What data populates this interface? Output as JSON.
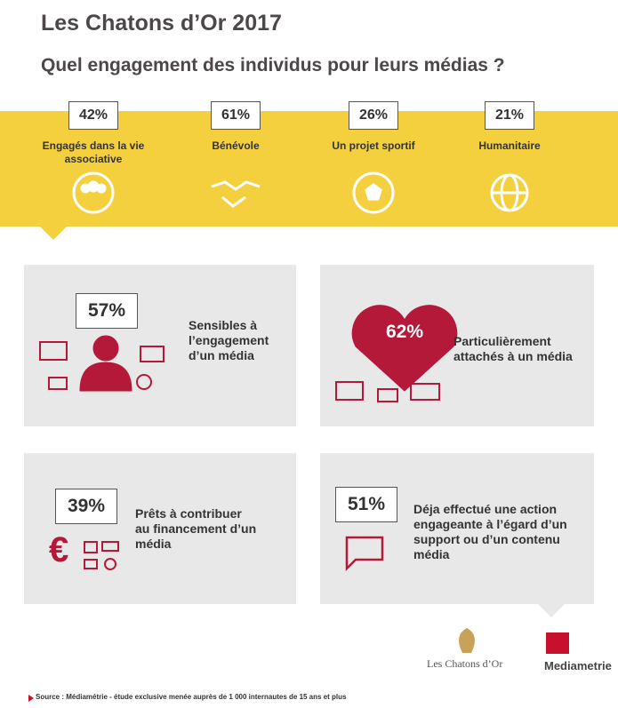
{
  "header": {
    "title": "Les Chatons d’Or 2017",
    "subtitle": "Quel engagement des individus pour leurs médias ?"
  },
  "engagements": [
    {
      "value": "42%",
      "label": "Engagés dans la vie associative"
    },
    {
      "value": "61%",
      "label": "Bénévole"
    },
    {
      "value": "26%",
      "label": "Un projet sportif"
    },
    {
      "value": "21%",
      "label": "Humanitaire"
    }
  ],
  "panels": [
    {
      "value": "57%",
      "label": "Sensibles à l’engagement d’un média"
    },
    {
      "value": "62%",
      "label": "Particulièrement attachés à un média"
    },
    {
      "value": "39%",
      "label": "Prêts à contribuer au financement d’un média"
    },
    {
      "value": "51%",
      "label": "Déja effectué une action engageante à l’égard d’un support ou d’un contenu média"
    }
  ],
  "logos": [
    "Les Chatons d’Or",
    "Mediametrie"
  ],
  "footer": "Source : Médiamétrie  -  étude exclusive menée auprès de 1 000 internautes de 15 ans et plus"
}
